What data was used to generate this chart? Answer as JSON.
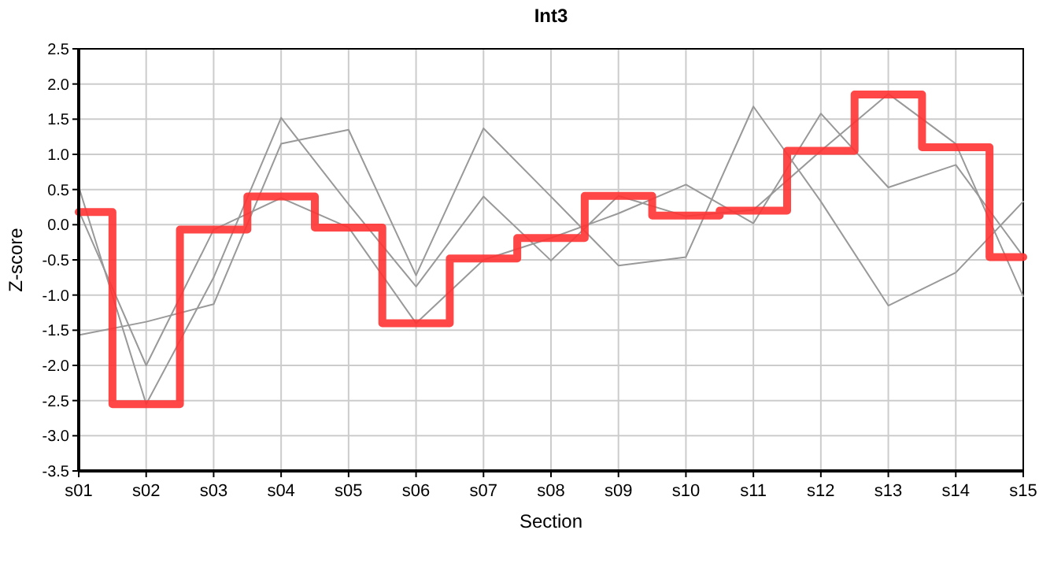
{
  "chart_data": {
    "type": "line",
    "title": "Int3",
    "xlabel": "Section",
    "ylabel": "Z-score",
    "categories": [
      "s01",
      "s02",
      "s03",
      "s04",
      "s05",
      "s06",
      "s07",
      "s08",
      "s09",
      "s10",
      "s11",
      "s12",
      "s13",
      "s14",
      "s15"
    ],
    "series": [
      {
        "color": "#999999",
        "values": [
          0.54,
          -2.55,
          -0.75,
          1.52,
          0.29,
          -0.88,
          0.4,
          -0.51,
          0.41,
          0.12,
          0.21,
          1.05,
          1.86,
          1.15,
          -1.02
        ]
      },
      {
        "color": "#999999",
        "values": [
          0.2,
          -2.0,
          -0.07,
          0.38,
          -0.04,
          -1.4,
          -0.5,
          -0.19,
          0.16,
          0.57,
          0.02,
          1.58,
          0.53,
          0.85,
          -0.45
        ]
      },
      {
        "color": "#999999",
        "values": [
          -1.57,
          -1.38,
          -1.13,
          1.15,
          1.35,
          -0.72,
          1.37,
          0.4,
          -0.58,
          -0.46,
          1.68,
          0.33,
          -1.15,
          -0.68,
          0.33
        ]
      },
      {
        "type": "step",
        "color": "#ff3333",
        "values": [
          0.18,
          -2.55,
          -0.07,
          0.4,
          -0.04,
          -1.4,
          -0.48,
          -0.19,
          0.41,
          0.13,
          0.2,
          1.05,
          1.85,
          1.1,
          -0.46
        ]
      }
    ],
    "ylim": [
      -3.5,
      2.5
    ],
    "yticks": [
      {
        "value": -3.5,
        "label": "-3.5"
      },
      {
        "value": -3,
        "label": "-3.0"
      },
      -2.5,
      {
        "value": -2,
        "label": "-2.0"
      },
      -1.5,
      {
        "value": -1,
        "label": "-1.0"
      },
      -0.5,
      {
        "value": 0,
        "label": "0.0"
      },
      0.5,
      {
        "value": 1,
        "label": "1.0"
      },
      1.5,
      {
        "value": 2,
        "label": "2.0"
      },
      2.5
    ],
    "grid": true,
    "marker": "none",
    "line_style": "solid"
  }
}
